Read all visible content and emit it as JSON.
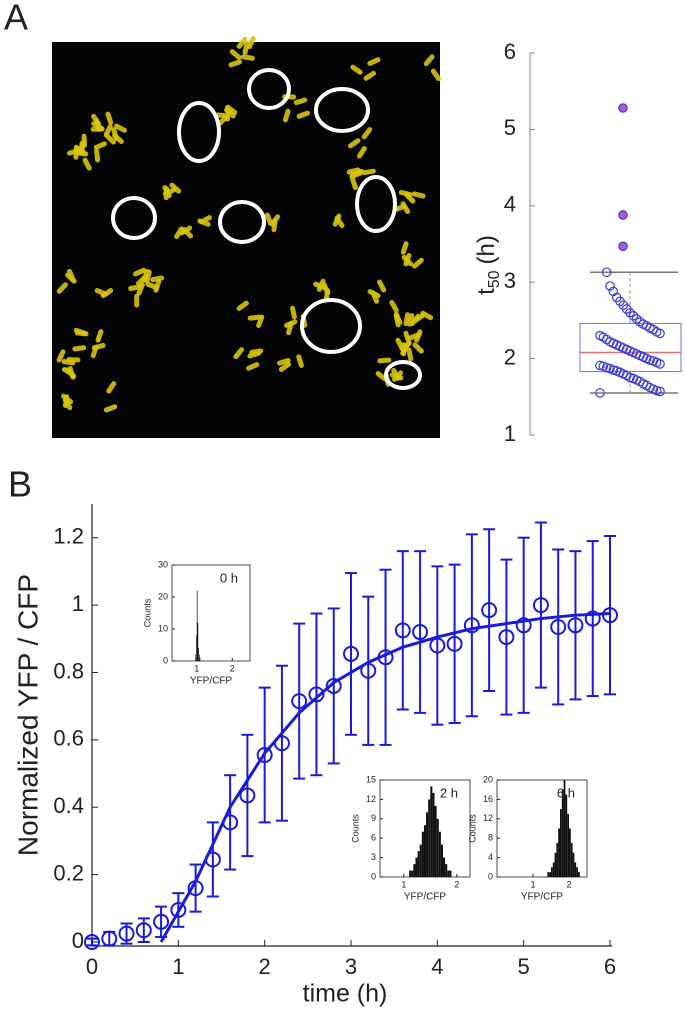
{
  "panels": [
    "A",
    "B"
  ],
  "chart_data": [
    {
      "type": "box",
      "ylabel": "t",
      "ylabel_sub": "50",
      "ylabel_unit": "(h)",
      "ylim": [
        1,
        6
      ],
      "yticks": [
        1,
        2,
        3,
        4,
        5,
        6
      ],
      "values": [
        1.55,
        1.57,
        1.58,
        1.6,
        1.62,
        1.65,
        1.67,
        1.7,
        1.72,
        1.74,
        1.75,
        1.78,
        1.8,
        1.82,
        1.84,
        1.85,
        1.87,
        1.88,
        1.9,
        1.91,
        1.93,
        1.95,
        1.97,
        1.98,
        2.0,
        2.02,
        2.04,
        2.06,
        2.08,
        2.1,
        2.12,
        2.14,
        2.16,
        2.18,
        2.2,
        2.22,
        2.25,
        2.28,
        2.3,
        2.33,
        2.35,
        2.38,
        2.4,
        2.43,
        2.45,
        2.48,
        2.52,
        2.56,
        2.6,
        2.65,
        2.7,
        2.75,
        2.8,
        2.88,
        2.95,
        3.13
      ],
      "outliers": [
        3.47,
        3.88,
        5.28
      ],
      "quartiles": [
        1.83,
        2.08,
        2.46
      ],
      "whiskers": [
        1.55,
        3.13
      ],
      "color": "#3a3ae0",
      "median_color": "#e07070",
      "outlier_color": "#b05cc4"
    },
    {
      "type": "errorbar",
      "xlabel": "time (h)",
      "ylabel": "Normalized  YFP / CFP",
      "xlim": [
        0,
        6
      ],
      "xticks": [
        0,
        1,
        2,
        3,
        4,
        5,
        6
      ],
      "ylim": [
        0,
        1.3
      ],
      "yticks": [
        0,
        0.2,
        0.4,
        0.6,
        0.8,
        1,
        1.2
      ],
      "color": "#1a1adb",
      "x": [
        0,
        0.2,
        0.4,
        0.6,
        0.8,
        1,
        1.2,
        1.4,
        1.6,
        1.8,
        2,
        2.2,
        2.4,
        2.6,
        2.8,
        3,
        3.2,
        3.4,
        3.6,
        3.8,
        4,
        4.2,
        4.4,
        4.6,
        4.8,
        5,
        5.2,
        5.4,
        5.6,
        5.8,
        6
      ],
      "values": [
        0,
        0.01,
        0.025,
        0.035,
        0.06,
        0.095,
        0.16,
        0.245,
        0.355,
        0.435,
        0.555,
        0.59,
        0.715,
        0.735,
        0.76,
        0.855,
        0.805,
        0.845,
        0.925,
        0.92,
        0.88,
        0.885,
        0.94,
        0.985,
        0.905,
        0.94,
        1,
        0.935,
        0.94,
        0.96,
        0.97
      ],
      "errors": [
        0.01,
        0.02,
        0.03,
        0.035,
        0.045,
        0.05,
        0.07,
        0.11,
        0.14,
        0.18,
        0.2,
        0.23,
        0.23,
        0.24,
        0.23,
        0.24,
        0.22,
        0.26,
        0.235,
        0.24,
        0.235,
        0.235,
        0.27,
        0.24,
        0.23,
        0.26,
        0.245,
        0.23,
        0.22,
        0.23,
        0.235
      ],
      "fit": {
        "x": [
          0.8,
          1.2,
          1.6,
          2,
          2.4,
          2.8,
          3.2,
          3.6,
          4,
          4.4,
          4.8,
          5.2,
          5.6,
          6
        ],
        "values": [
          0,
          0.18,
          0.4,
          0.56,
          0.68,
          0.77,
          0.83,
          0.875,
          0.905,
          0.93,
          0.945,
          0.96,
          0.97,
          0.975
        ]
      }
    },
    {
      "type": "histogram",
      "title": "0 h",
      "xlabel": "YFP/CFP",
      "ylabel": "Counts",
      "xlim": [
        0.3,
        2.5
      ],
      "xticks": [
        1,
        2
      ],
      "ylim": [
        0,
        30
      ],
      "yticks": [
        0,
        10,
        20,
        30
      ],
      "bins": [
        0.96,
        0.98,
        1,
        1.02,
        1.04,
        1.06,
        1.08,
        1.1
      ],
      "counts": [
        2,
        8,
        22,
        12,
        4,
        2,
        1
      ]
    },
    {
      "type": "histogram",
      "title": "2 h",
      "xlabel": "YFP/CFP",
      "ylabel": "Counts",
      "xlim": [
        0.55,
        2.25
      ],
      "xticks": [
        1,
        2
      ],
      "ylim": [
        0,
        15
      ],
      "yticks": [
        0,
        3,
        6,
        9,
        12,
        15
      ],
      "bins": [
        1.1,
        1.14,
        1.18,
        1.22,
        1.26,
        1.3,
        1.34,
        1.38,
        1.42,
        1.46,
        1.5,
        1.54,
        1.58,
        1.62,
        1.66,
        1.7,
        1.74,
        1.78,
        1.82,
        1.86,
        1.9
      ],
      "counts": [
        1,
        1,
        2,
        3,
        4,
        5,
        7,
        8,
        10,
        12,
        14,
        13,
        11,
        9,
        7,
        5,
        3,
        2,
        1,
        1
      ]
    },
    {
      "type": "histogram",
      "title": "6 h",
      "xlabel": "YFP/CFP",
      "ylabel": "Counts",
      "xlim": [
        0,
        2.5
      ],
      "xticks": [
        1,
        2
      ],
      "ylim": [
        0,
        20
      ],
      "yticks": [
        0,
        4,
        8,
        12,
        16,
        20
      ],
      "bins": [
        1.4,
        1.45,
        1.5,
        1.55,
        1.6,
        1.65,
        1.7,
        1.75,
        1.8,
        1.85,
        1.9,
        1.95,
        2,
        2.05,
        2.1,
        2.15,
        2.2,
        2.25,
        2.3
      ],
      "counts": [
        1,
        1,
        2,
        3,
        5,
        7,
        10,
        14,
        18,
        20,
        17,
        13,
        10,
        7,
        5,
        3,
        2,
        1
      ]
    }
  ]
}
